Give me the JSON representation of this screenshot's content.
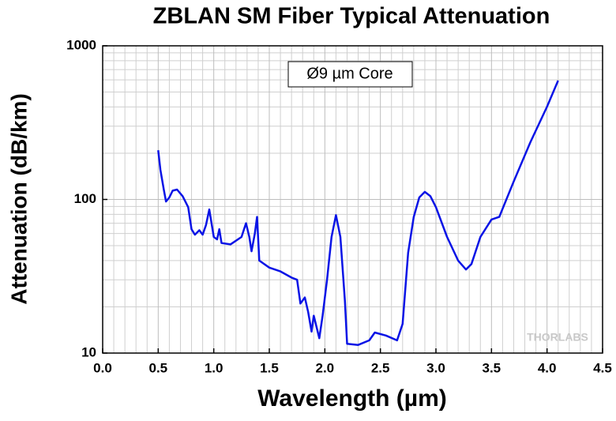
{
  "chart_data": {
    "type": "line",
    "title": "ZBLAN SM Fiber Typical Attenuation",
    "x_label": "Wavelength (µm)",
    "y_label": "Attenuation (dB/km)",
    "annotation": "Ø9 µm Core",
    "watermark": "THORLABS",
    "y_log": true,
    "grid": true,
    "minor_grid": true,
    "xlim": [
      0,
      4.5
    ],
    "xticks": [
      {
        "value": 0,
        "label": "0.0"
      },
      0.5,
      {
        "value": 1,
        "label": "1.0"
      },
      1.5,
      {
        "value": 2,
        "label": "2.0"
      },
      2.5,
      {
        "value": 3,
        "label": "3.0"
      },
      3.5,
      {
        "value": 4,
        "label": "4.0"
      },
      4.5
    ],
    "ylim": [
      10,
      1000
    ],
    "yticks": [
      10,
      100,
      1000
    ],
    "series": [
      {
        "color": "#0a14e6",
        "x": [
          0.5,
          0.52,
          0.55,
          0.57,
          0.6,
          0.63,
          0.67,
          0.72,
          0.77,
          0.8,
          0.83,
          0.87,
          0.9,
          0.93,
          0.96,
          1.0,
          1.03,
          1.05,
          1.07,
          1.15,
          1.25,
          1.29,
          1.32,
          1.34,
          1.37,
          1.39,
          1.41,
          1.5,
          1.6,
          1.7,
          1.75,
          1.78,
          1.82,
          1.85,
          1.88,
          1.9,
          1.95,
          1.98,
          2.02,
          2.06,
          2.1,
          2.14,
          2.18,
          2.2,
          2.3,
          2.4,
          2.45,
          2.55,
          2.65,
          2.7,
          2.75,
          2.8,
          2.85,
          2.9,
          2.95,
          3.0,
          3.1,
          3.2,
          3.27,
          3.32,
          3.4,
          3.5,
          3.57,
          3.7,
          3.85,
          4.0,
          4.1
        ],
        "values": [
          209,
          156,
          116,
          97,
          103,
          114,
          116,
          105,
          89,
          64,
          59,
          63,
          59,
          68,
          86,
          57,
          55,
          64,
          52,
          51,
          57,
          70,
          57,
          46,
          60,
          77,
          40,
          36,
          34,
          31,
          30,
          21,
          23,
          18.5,
          13.8,
          17.5,
          12.5,
          17.5,
          30,
          57,
          79,
          57,
          22,
          11.5,
          11.3,
          12.1,
          13.6,
          13,
          12.1,
          15.5,
          45,
          77,
          103,
          112,
          105,
          89,
          57,
          40,
          35,
          38,
          57,
          74,
          77,
          131,
          236,
          402,
          594
        ]
      }
    ]
  }
}
